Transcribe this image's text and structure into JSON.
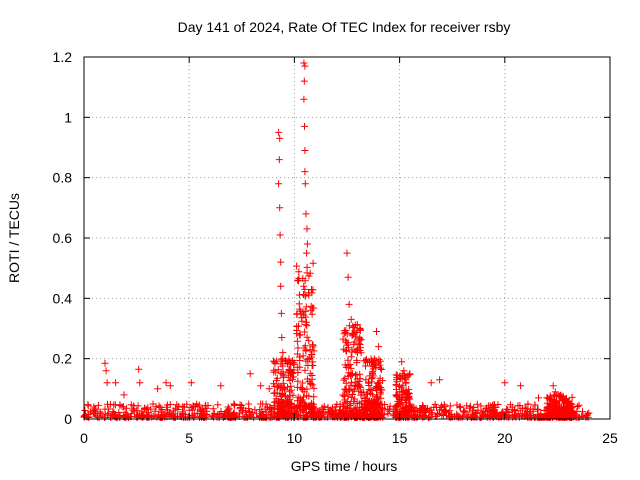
{
  "chart_data": {
    "type": "scatter",
    "title": "Day 141 of 2024, Rate Of TEC Index for receiver rsby",
    "xlabel": "GPS time / hours",
    "ylabel": "ROTI / TECUs",
    "xlim": [
      0,
      25
    ],
    "ylim": [
      0,
      1.2
    ],
    "x_ticks": [
      0,
      5,
      10,
      15,
      20,
      25
    ],
    "x_tick_labels": [
      "0",
      "5",
      "10",
      "15",
      "20",
      "25"
    ],
    "y_ticks": [
      0,
      0.2,
      0.4,
      0.6,
      0.8,
      1,
      1.2
    ],
    "y_tick_labels": [
      "0",
      "0.2",
      "0.4",
      "0.6",
      "0.8",
      "1",
      "1.2"
    ],
    "grid": true,
    "marker": "+",
    "color": "#ff0000",
    "series": [
      {
        "name": "ROTI",
        "peaks": [
          {
            "x": 1.0,
            "y": 0.185
          },
          {
            "x": 1.05,
            "y": 0.16
          },
          {
            "x": 1.1,
            "y": 0.12
          },
          {
            "x": 1.5,
            "y": 0.12
          },
          {
            "x": 1.9,
            "y": 0.08
          },
          {
            "x": 2.6,
            "y": 0.165
          },
          {
            "x": 2.65,
            "y": 0.12
          },
          {
            "x": 3.5,
            "y": 0.1
          },
          {
            "x": 3.9,
            "y": 0.12
          },
          {
            "x": 4.1,
            "y": 0.11
          },
          {
            "x": 5.1,
            "y": 0.12
          },
          {
            "x": 6.5,
            "y": 0.11
          },
          {
            "x": 7.9,
            "y": 0.15
          },
          {
            "x": 8.4,
            "y": 0.11
          },
          {
            "x": 8.8,
            "y": 0.1
          },
          {
            "x": 9.25,
            "y": 0.95
          },
          {
            "x": 9.3,
            "y": 0.93
          },
          {
            "x": 9.28,
            "y": 0.86
          },
          {
            "x": 9.25,
            "y": 0.78
          },
          {
            "x": 9.3,
            "y": 0.7
          },
          {
            "x": 9.32,
            "y": 0.61
          },
          {
            "x": 9.35,
            "y": 0.52
          },
          {
            "x": 9.35,
            "y": 0.44
          },
          {
            "x": 9.38,
            "y": 0.35
          },
          {
            "x": 9.4,
            "y": 0.27
          },
          {
            "x": 9.45,
            "y": 0.22
          },
          {
            "x": 10.45,
            "y": 1.18
          },
          {
            "x": 10.5,
            "y": 1.17
          },
          {
            "x": 10.47,
            "y": 1.12
          },
          {
            "x": 10.45,
            "y": 1.06
          },
          {
            "x": 10.48,
            "y": 0.97
          },
          {
            "x": 10.5,
            "y": 0.89
          },
          {
            "x": 10.5,
            "y": 0.82
          },
          {
            "x": 10.52,
            "y": 0.78
          },
          {
            "x": 10.55,
            "y": 0.68
          },
          {
            "x": 10.6,
            "y": 0.63
          },
          {
            "x": 10.62,
            "y": 0.58
          },
          {
            "x": 10.58,
            "y": 0.55
          },
          {
            "x": 12.5,
            "y": 0.55
          },
          {
            "x": 12.55,
            "y": 0.47
          },
          {
            "x": 12.6,
            "y": 0.38
          },
          {
            "x": 12.7,
            "y": 0.33
          },
          {
            "x": 12.8,
            "y": 0.28
          },
          {
            "x": 13.0,
            "y": 0.22
          },
          {
            "x": 13.9,
            "y": 0.29
          },
          {
            "x": 14.0,
            "y": 0.24
          },
          {
            "x": 13.8,
            "y": 0.18
          },
          {
            "x": 15.1,
            "y": 0.19
          },
          {
            "x": 15.2,
            "y": 0.16
          },
          {
            "x": 15.3,
            "y": 0.13
          },
          {
            "x": 16.5,
            "y": 0.12
          },
          {
            "x": 16.9,
            "y": 0.13
          },
          {
            "x": 20.0,
            "y": 0.12
          },
          {
            "x": 20.75,
            "y": 0.11
          },
          {
            "x": 21.6,
            "y": 0.07
          },
          {
            "x": 22.3,
            "y": 0.11
          },
          {
            "x": 22.4,
            "y": 0.09
          }
        ],
        "active_intervals": [
          {
            "x": [
              9.0,
              10.0
            ],
            "ymax": 0.2
          },
          {
            "x": [
              10.1,
              10.95
            ],
            "ymax": 0.52
          },
          {
            "x": [
              12.3,
              13.2
            ],
            "ymax": 0.32
          },
          {
            "x": [
              13.2,
              14.2
            ],
            "ymax": 0.2
          },
          {
            "x": [
              14.8,
              15.5
            ],
            "ymax": 0.15
          },
          {
            "x": [
              22.0,
              23.2
            ],
            "ymax": 0.08
          }
        ],
        "background_level": [
          0.005,
          0.05
        ]
      }
    ]
  }
}
